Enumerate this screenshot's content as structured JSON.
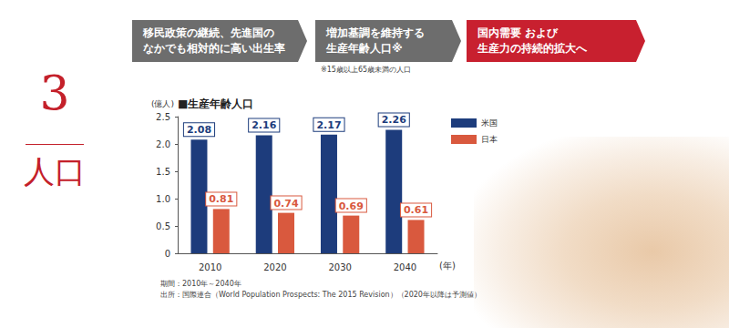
{
  "header": {
    "number": "3",
    "label": "人口"
  },
  "steps": [
    "移民政策の継続、先進国の\nなかでも相対的に高い出生率",
    "増加基調を維持する\n生産年齢人口※",
    "国内需要 および\n生産力の持続的拡大へ"
  ],
  "footnote": "※15歳以上65歳未満の人口",
  "notes": [
    "期間：2010年～2040年",
    "出所：国際連合（World Population Prospects: The 2015 Revision）（2020年以降は予測値）"
  ],
  "chart_data": {
    "type": "bar",
    "title": "■生産年齢人口",
    "y_label": "(億人)",
    "x_label": "(年)",
    "categories": [
      "2010",
      "2020",
      "2030",
      "2040"
    ],
    "series": [
      {
        "name": "米国",
        "color": "#1d3c7c",
        "values": [
          2.08,
          2.16,
          2.17,
          2.26
        ]
      },
      {
        "name": "日本",
        "color": "#d9593e",
        "values": [
          0.81,
          0.74,
          0.69,
          0.61
        ]
      }
    ],
    "ylim": [
      0,
      2.5
    ],
    "yticks": [
      0,
      0.5,
      {
        "value": 1.0,
        "label": "1.0"
      },
      1.5,
      {
        "value": 2.0,
        "label": "2.0"
      },
      2.5
    ],
    "grid": false,
    "legend": "right",
    "data_labels": true
  }
}
